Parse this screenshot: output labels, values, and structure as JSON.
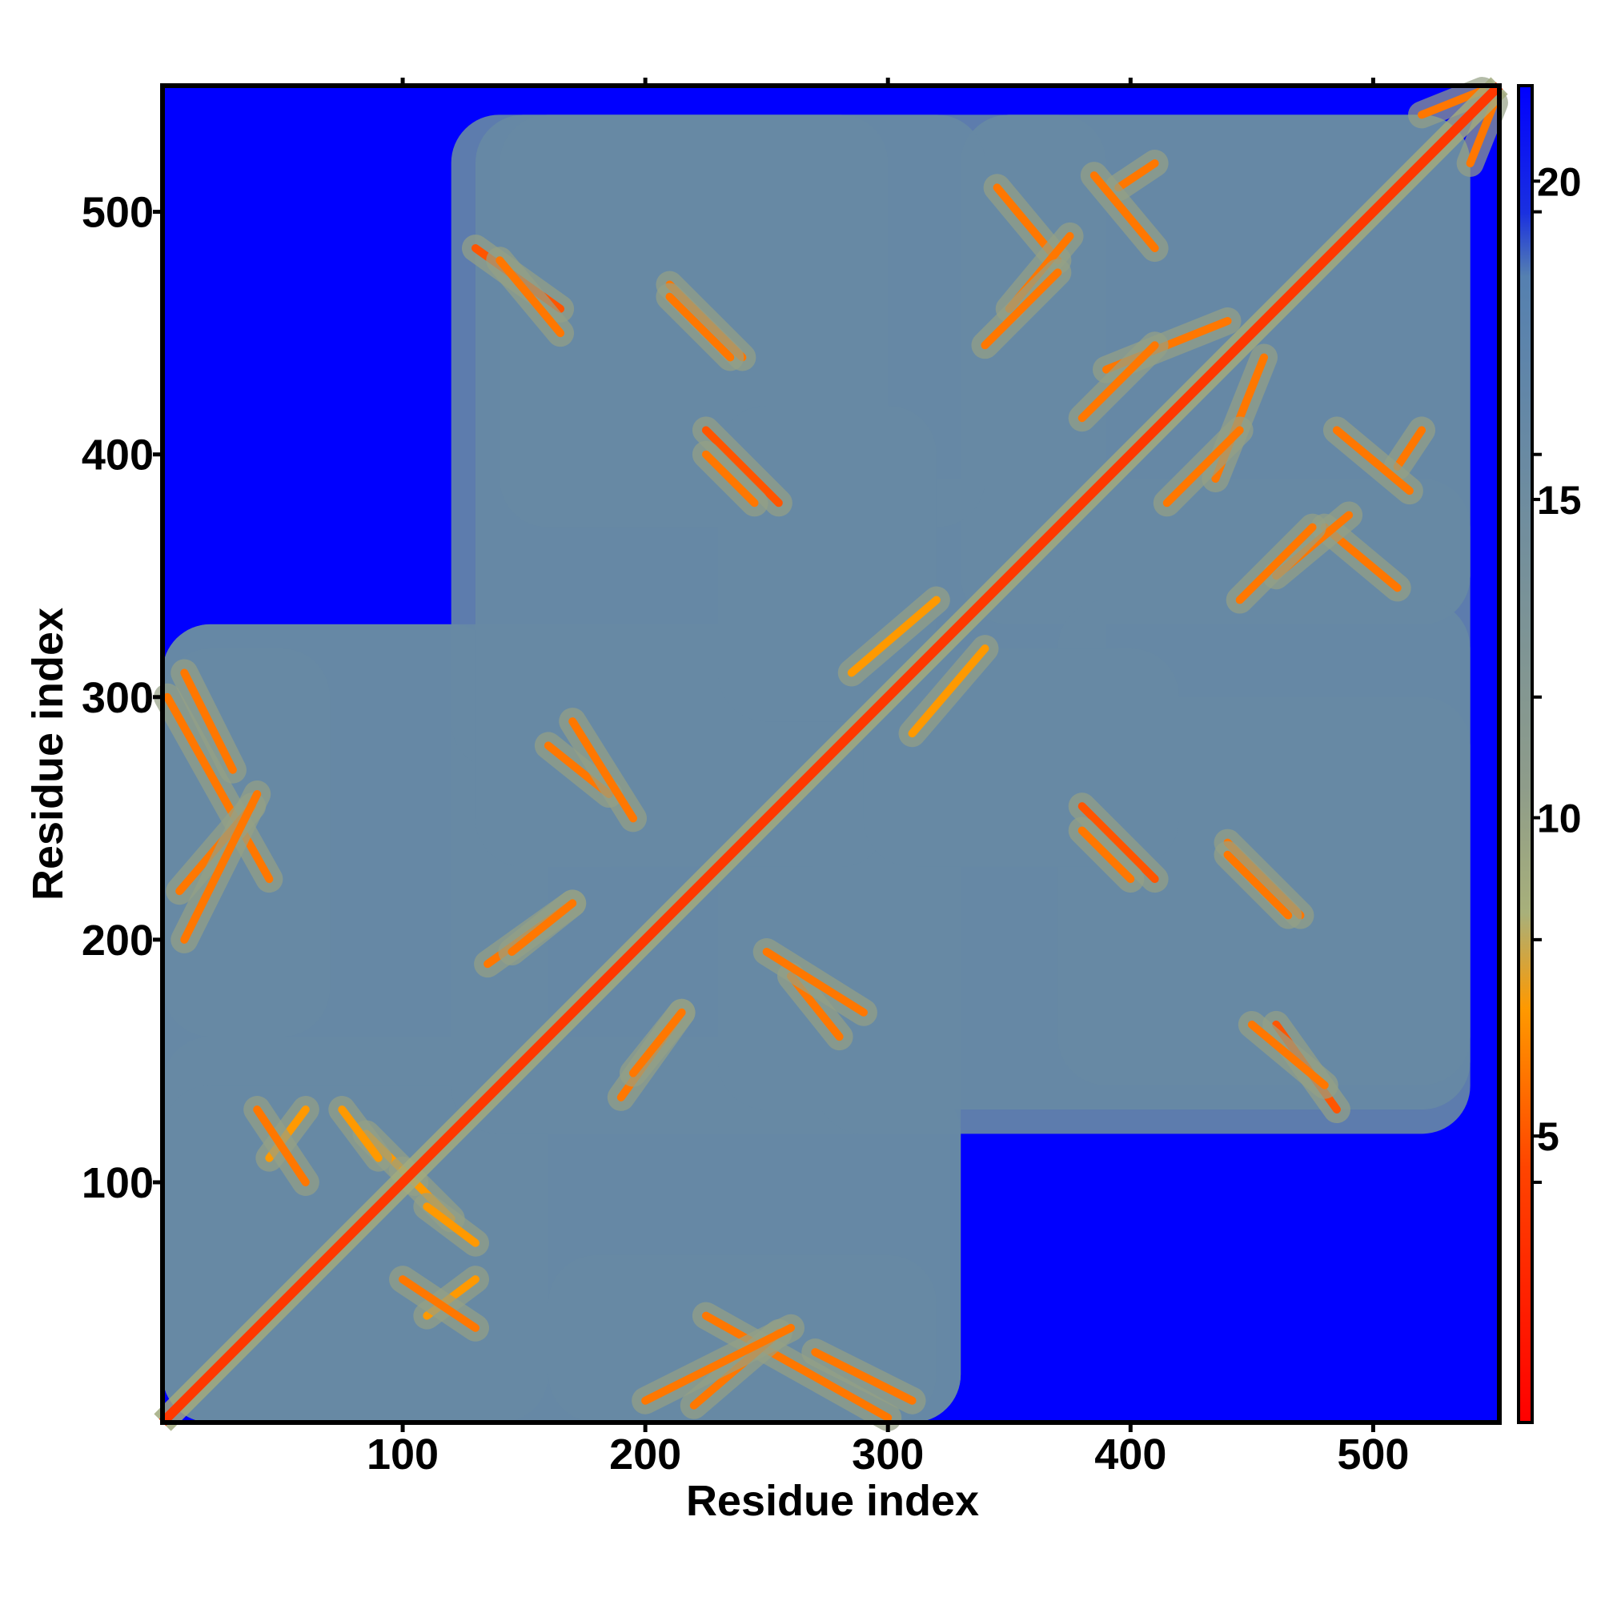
{
  "chart_data": {
    "type": "heatmap",
    "title": "",
    "xlabel": "Residue index",
    "ylabel": "Residue index",
    "xlim": [
      1,
      552
    ],
    "ylim": [
      1,
      552
    ],
    "xticks": [
      100,
      200,
      300,
      400,
      500
    ],
    "yticks": [
      100,
      200,
      300,
      400,
      500
    ],
    "colorbar": {
      "ticks": [
        5,
        10,
        15,
        20
      ],
      "range": [
        0.5,
        21.5
      ],
      "colormap": [
        {
          "value": 0.5,
          "color": "#ff0000"
        },
        {
          "value": 4.5,
          "color": "#ff4400"
        },
        {
          "value": 7.0,
          "color": "#ff9900"
        },
        {
          "value": 8.5,
          "color": "#a8b07a"
        },
        {
          "value": 10.5,
          "color": "#8e9c8a"
        },
        {
          "value": 18.5,
          "color": "#5580b0"
        },
        {
          "value": 19.5,
          "color": "#1a30e0"
        },
        {
          "value": 21.5,
          "color": "#0000ff"
        }
      ]
    },
    "diagonal_value": 3.8,
    "background_value": 21,
    "contact_regions_value": 16,
    "contact_regions": [
      {
        "x": [
          1,
          330
        ],
        "y": [
          1,
          160
        ]
      },
      {
        "x": [
          1,
          140
        ],
        "y": [
          1,
          330
        ]
      },
      {
        "x": [
          1,
          70
        ],
        "y": [
          160,
          320
        ]
      },
      {
        "x": [
          120,
          330
        ],
        "y": [
          120,
          330
        ]
      },
      {
        "x": [
          120,
          390
        ],
        "y": [
          270,
          540
        ]
      },
      {
        "x": [
          330,
          540
        ],
        "y": [
          330,
          540
        ]
      },
      {
        "x": [
          230,
          540
        ],
        "y": [
          130,
          300
        ]
      },
      {
        "x": [
          370,
          540
        ],
        "y": [
          140,
          340
        ]
      },
      {
        "x": [
          230,
          320
        ],
        "y": [
          290,
          420
        ]
      }
    ],
    "contact_streaks": [
      {
        "x": [
          3,
          45
        ],
        "y": [
          300,
          225
        ],
        "value": 6
      },
      {
        "x": [
          8,
          38
        ],
        "y": [
          220,
          255
        ],
        "value": 6
      },
      {
        "x": [
          45,
          60
        ],
        "y": [
          110,
          130
        ],
        "value": 7
      },
      {
        "x": [
          85,
          105
        ],
        "y": [
          120,
          100
        ],
        "value": 7
      },
      {
        "x": [
          100,
          130
        ],
        "y": [
          60,
          40
        ],
        "value": 6
      },
      {
        "x": [
          110,
          130
        ],
        "y": [
          90,
          75
        ],
        "value": 7
      },
      {
        "x": [
          200,
          260
        ],
        "y": [
          10,
          40
        ],
        "value": 6
      },
      {
        "x": [
          270,
          310
        ],
        "y": [
          30,
          10
        ],
        "value": 6
      },
      {
        "x": [
          135,
          170
        ],
        "y": [
          190,
          215
        ],
        "value": 6
      },
      {
        "x": [
          195,
          215
        ],
        "y": [
          145,
          170
        ],
        "value": 6
      },
      {
        "x": [
          160,
          185
        ],
        "y": [
          280,
          260
        ],
        "value": 6
      },
      {
        "x": [
          250,
          290
        ],
        "y": [
          195,
          170
        ],
        "value": 6
      },
      {
        "x": [
          310,
          340
        ],
        "y": [
          285,
          320
        ],
        "value": 7
      },
      {
        "x": [
          130,
          165
        ],
        "y": [
          485,
          460
        ],
        "value": 5
      },
      {
        "x": [
          210,
          240
        ],
        "y": [
          470,
          440
        ],
        "value": 6
      },
      {
        "x": [
          225,
          255
        ],
        "y": [
          410,
          380
        ],
        "value": 5
      },
      {
        "x": [
          345,
          370
        ],
        "y": [
          510,
          480
        ],
        "value": 6
      },
      {
        "x": [
          350,
          375
        ],
        "y": [
          460,
          490
        ],
        "value": 6
      },
      {
        "x": [
          395,
          410
        ],
        "y": [
          510,
          520
        ],
        "value": 6
      },
      {
        "x": [
          390,
          440
        ],
        "y": [
          435,
          455
        ],
        "value": 6
      },
      {
        "x": [
          415,
          445
        ],
        "y": [
          380,
          410
        ],
        "value": 6
      },
      {
        "x": [
          445,
          475
        ],
        "y": [
          340,
          370
        ],
        "value": 6
      },
      {
        "x": [
          485,
          515
        ],
        "y": [
          410,
          385
        ],
        "value": 6
      },
      {
        "x": [
          380,
          400
        ],
        "y": [
          245,
          225
        ],
        "value": 6
      },
      {
        "x": [
          440,
          465
        ],
        "y": [
          235,
          210
        ],
        "value": 6
      },
      {
        "x": [
          450,
          480
        ],
        "y": [
          165,
          140
        ],
        "value": 6
      },
      {
        "x": [
          520,
          545
        ],
        "y": [
          540,
          550
        ],
        "value": 6
      }
    ]
  }
}
